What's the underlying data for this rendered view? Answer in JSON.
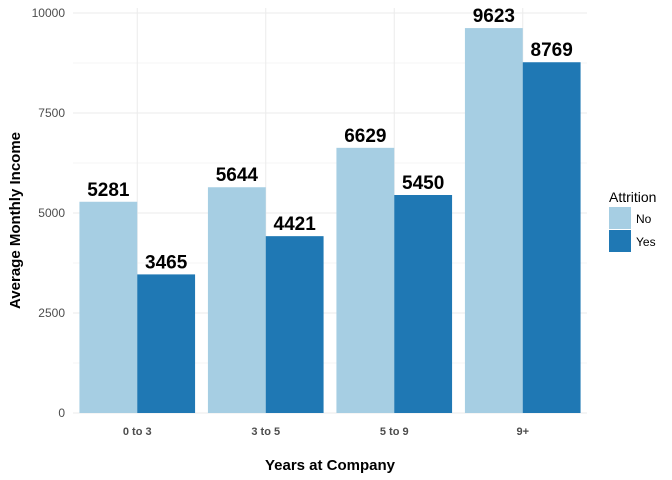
{
  "chart_data": {
    "type": "bar",
    "categories": [
      "0 to 3",
      "3 to 5",
      "5 to 9",
      "9+"
    ],
    "series": [
      {
        "name": "No",
        "values": [
          5281,
          5644,
          6629,
          9623
        ],
        "color": "#a6cee3"
      },
      {
        "name": "Yes",
        "values": [
          3465,
          4421,
          5450,
          8769
        ],
        "color": "#1f78b4"
      }
    ],
    "xlabel": "Years at Company",
    "ylabel": "Average Monthly Income",
    "ylim": [
      0,
      10000
    ],
    "yticks": [
      0,
      2500,
      5000,
      7500,
      10000
    ],
    "legend": {
      "title": "Attrition",
      "position": "right"
    },
    "grid": true,
    "data_labels": true
  }
}
